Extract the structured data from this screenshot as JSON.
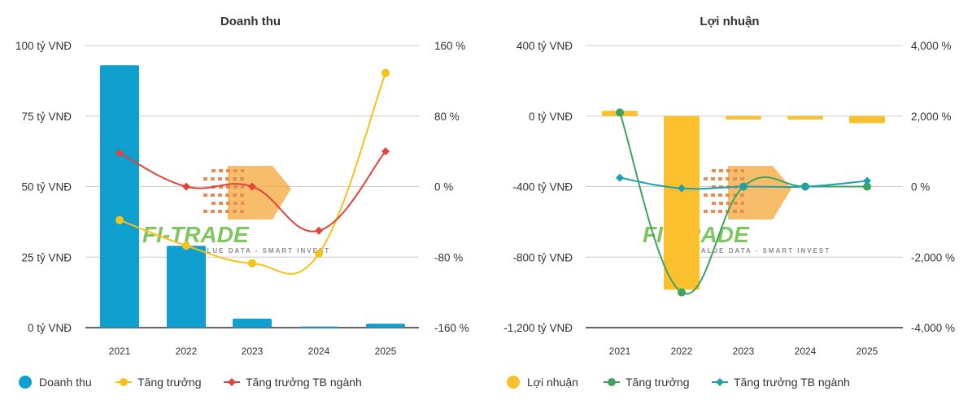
{
  "chart_data": [
    {
      "type": "bar+line",
      "title": "Doanh thu",
      "categories": [
        "2021",
        "2022",
        "2023",
        "2024",
        "2025"
      ],
      "y_left": {
        "ticks": [
          "100 tỷ VNĐ",
          "75 tỷ VNĐ",
          "50 tỷ VNĐ",
          "25 tỷ VNĐ",
          "0 tỷ VNĐ"
        ],
        "range": [
          0,
          100
        ]
      },
      "y_right": {
        "ticks": [
          "160 %",
          "80 %",
          "0 %",
          "-80 %",
          "-160 %"
        ],
        "range": [
          -160,
          160
        ]
      },
      "series": [
        {
          "name": "Doanh thu",
          "kind": "bar",
          "axis": "left",
          "color": "#0fa0d0",
          "values": [
            93,
            29,
            3.2,
            0.4,
            1.4
          ]
        },
        {
          "name": "Tăng trưởng",
          "kind": "line",
          "axis": "right",
          "color": "#f5c21b",
          "marker": "circle",
          "values": [
            -38,
            -67,
            -87,
            -76,
            129
          ]
        },
        {
          "name": "Tăng trưởng TB ngành",
          "kind": "line",
          "axis": "right",
          "color": "#e0443a",
          "marker": "diamond",
          "values": [
            38,
            0,
            0,
            -50,
            40
          ]
        }
      ],
      "grid": true,
      "legend": "bottom-left"
    },
    {
      "type": "bar+line",
      "title": "Lợi nhuận",
      "categories": [
        "2021",
        "2022",
        "2023",
        "2024",
        "2025"
      ],
      "y_left": {
        "ticks": [
          "400 tỷ VNĐ",
          "0 tỷ VNĐ",
          "-400 tỷ VNĐ",
          "-800 tỷ VNĐ",
          "-1,200 tỷ VNĐ"
        ],
        "range": [
          -1200,
          400
        ]
      },
      "y_right": {
        "ticks": [
          "4,000 %",
          "2,000 %",
          "0 %",
          "-2,000 %",
          "-4,000 %"
        ],
        "range": [
          -4000,
          4000
        ]
      },
      "series": [
        {
          "name": "Lợi nhuận",
          "kind": "bar",
          "axis": "left",
          "color": "#fbc02d",
          "values": [
            30,
            -985,
            -20,
            -20,
            -40
          ]
        },
        {
          "name": "Tăng trưởng",
          "kind": "line",
          "axis": "right",
          "color": "#3fa35f",
          "marker": "circle",
          "values": [
            2100,
            -3000,
            0,
            0,
            0
          ]
        },
        {
          "name": "Tăng trưởng TB ngành",
          "kind": "line",
          "axis": "right",
          "color": "#1e9fb4",
          "marker": "diamond",
          "values": [
            250,
            -50,
            0,
            0,
            160
          ]
        }
      ],
      "grid": true,
      "legend": "bottom-left"
    }
  ],
  "watermark": {
    "brand": "FI-TRADE",
    "tagline": "VALUE DATA - SMART INVEST"
  }
}
